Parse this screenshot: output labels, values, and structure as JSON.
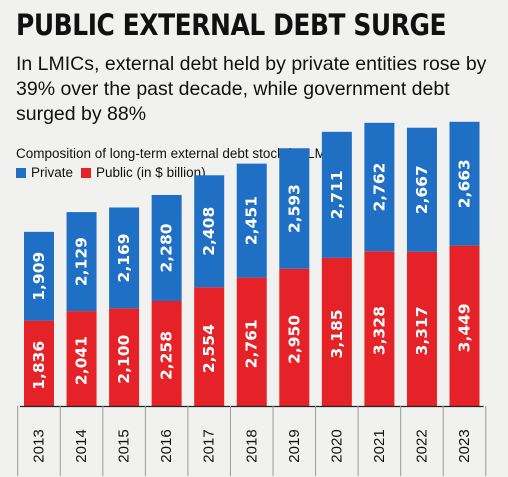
{
  "title": "PUBLIC EXTERNAL DEBT SURGE",
  "subtitle": "In LMICs, external debt held by private entities rose by 39% over the past decade, while government debt surged by 88%",
  "caption": "Composition of long-term external debt stock for LMICs",
  "legend": {
    "private": "Private",
    "public": "Public (in $ billion)"
  },
  "colors": {
    "private": "#1f6fc4",
    "public": "#e42227"
  },
  "chart_data": {
    "type": "bar",
    "stacked": true,
    "categories": [
      "2013",
      "2014",
      "2015",
      "2016",
      "2017",
      "2018",
      "2019",
      "2020",
      "2021",
      "2022",
      "2023"
    ],
    "series": [
      {
        "name": "Public (in $ billion)",
        "values": [
          1836,
          2041,
          2100,
          2258,
          2554,
          2761,
          2950,
          3185,
          3328,
          3317,
          3449
        ]
      },
      {
        "name": "Private",
        "values": [
          1909,
          2129,
          2169,
          2280,
          2408,
          2451,
          2593,
          2711,
          2762,
          2667,
          2663
        ]
      }
    ],
    "data_labels": {
      "public": [
        "1,836",
        "2,041",
        "2,100",
        "2,258",
        "2,554",
        "2,761",
        "2,950",
        "3,185",
        "3,328",
        "3,317",
        "3,449"
      ],
      "private": [
        "1,909",
        "2,129",
        "2,169",
        "2,280",
        "2,408",
        "2,451",
        "2,593",
        "2,711",
        "2,762",
        "2,667",
        "2,663"
      ]
    },
    "title": "Composition of long-term external debt stock for LMICs",
    "xlabel": "",
    "ylabel": "",
    "ylim": [
      0,
      6200
    ],
    "grid": false,
    "legend_position": "top-left"
  }
}
